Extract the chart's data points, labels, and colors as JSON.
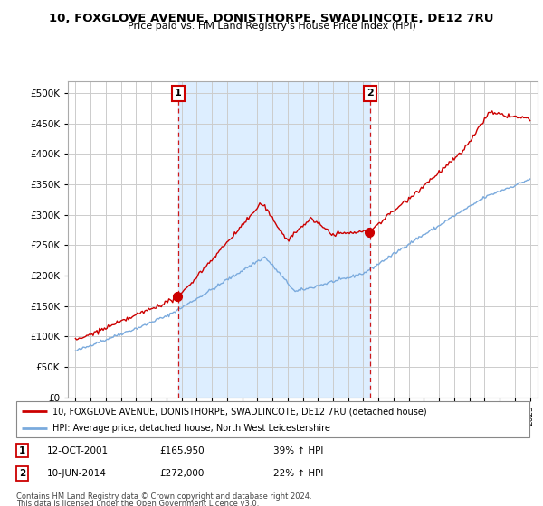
{
  "title": "10, FOXGLOVE AVENUE, DONISTHORPE, SWADLINCOTE, DE12 7RU",
  "subtitle": "Price paid vs. HM Land Registry's House Price Index (HPI)",
  "property_label": "10, FOXGLOVE AVENUE, DONISTHORPE, SWADLINCOTE, DE12 7RU (detached house)",
  "hpi_label": "HPI: Average price, detached house, North West Leicestershire",
  "sale1_date": "12-OCT-2001",
  "sale1_price": 165950,
  "sale1_hpi": "39% ↑ HPI",
  "sale2_date": "10-JUN-2014",
  "sale2_price": 272000,
  "sale2_hpi": "22% ↑ HPI",
  "sale1_x": 2001.79,
  "sale2_x": 2014.44,
  "footer": "Contains HM Land Registry data © Crown copyright and database right 2024.\nThis data is licensed under the Open Government Licence v3.0.",
  "ylim_min": 0,
  "ylim_max": 520000,
  "xlim_min": 1994.5,
  "xlim_max": 2025.5,
  "property_color": "#cc0000",
  "hpi_color": "#7aaadd",
  "shade_color": "#ddeeff",
  "vline_color": "#cc0000",
  "background_color": "#ffffff",
  "grid_color": "#cccccc"
}
